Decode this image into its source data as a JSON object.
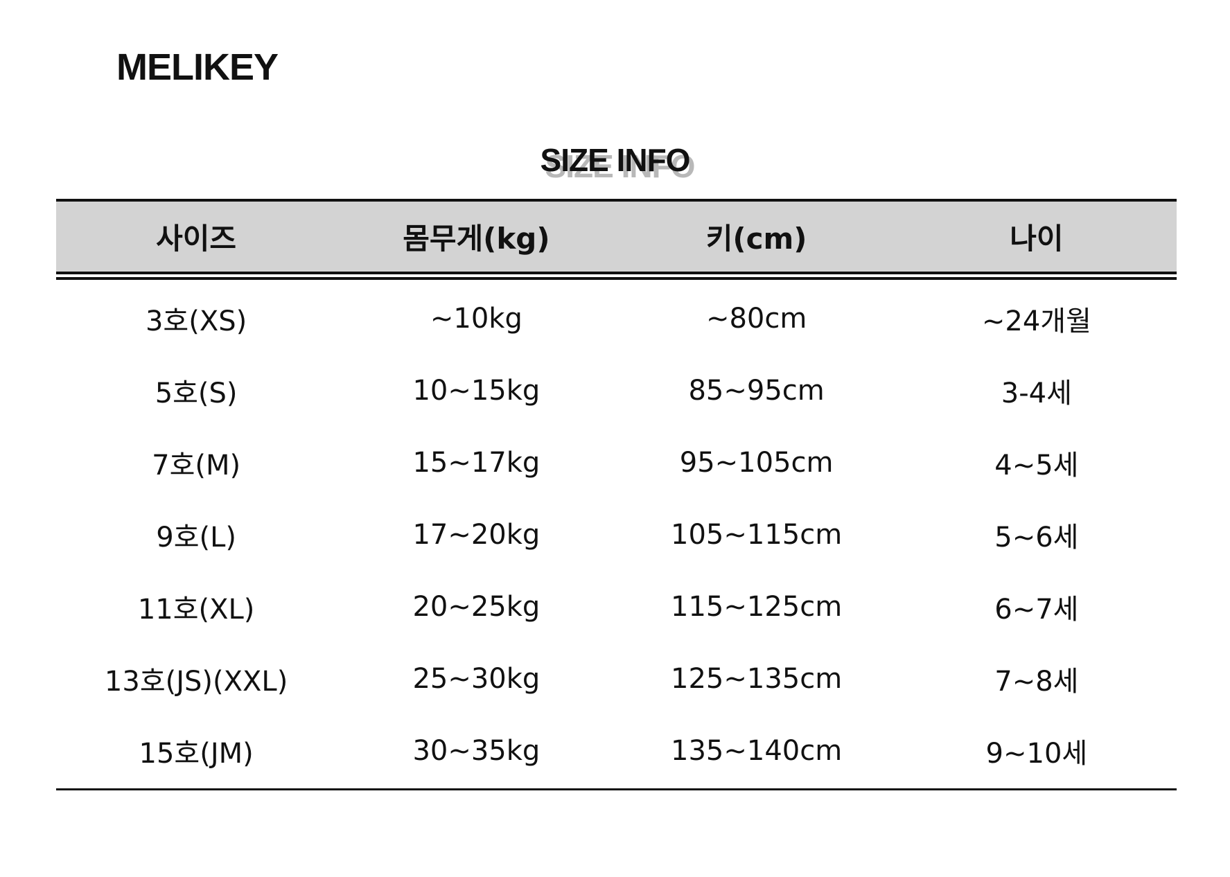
{
  "brand": "MELIKEY",
  "title": "SIZE INFO",
  "table": {
    "headers": [
      "사이즈",
      "몸무게(kg)",
      "키(cm)",
      "나이"
    ],
    "rows": [
      [
        "3호(XS)",
        "~10kg",
        "~80cm",
        "~24개월"
      ],
      [
        "5호(S)",
        "10~15kg",
        "85~95cm",
        "3-4세"
      ],
      [
        "7호(M)",
        "15~17kg",
        "95~105cm",
        "4~5세"
      ],
      [
        "9호(L)",
        "17~20kg",
        "105~115cm",
        "5~6세"
      ],
      [
        "11호(XL)",
        "20~25kg",
        "115~125cm",
        "6~7세"
      ],
      [
        "13호(JS)(XXL)",
        "25~30kg",
        "125~135cm",
        "7~8세"
      ],
      [
        "15호(JM)",
        "30~35kg",
        "135~140cm",
        "9~10세"
      ]
    ]
  },
  "colors": {
    "header_bg": "#d3d3d3",
    "rule": "#111111",
    "title_shadow": "#b8b8b8"
  }
}
